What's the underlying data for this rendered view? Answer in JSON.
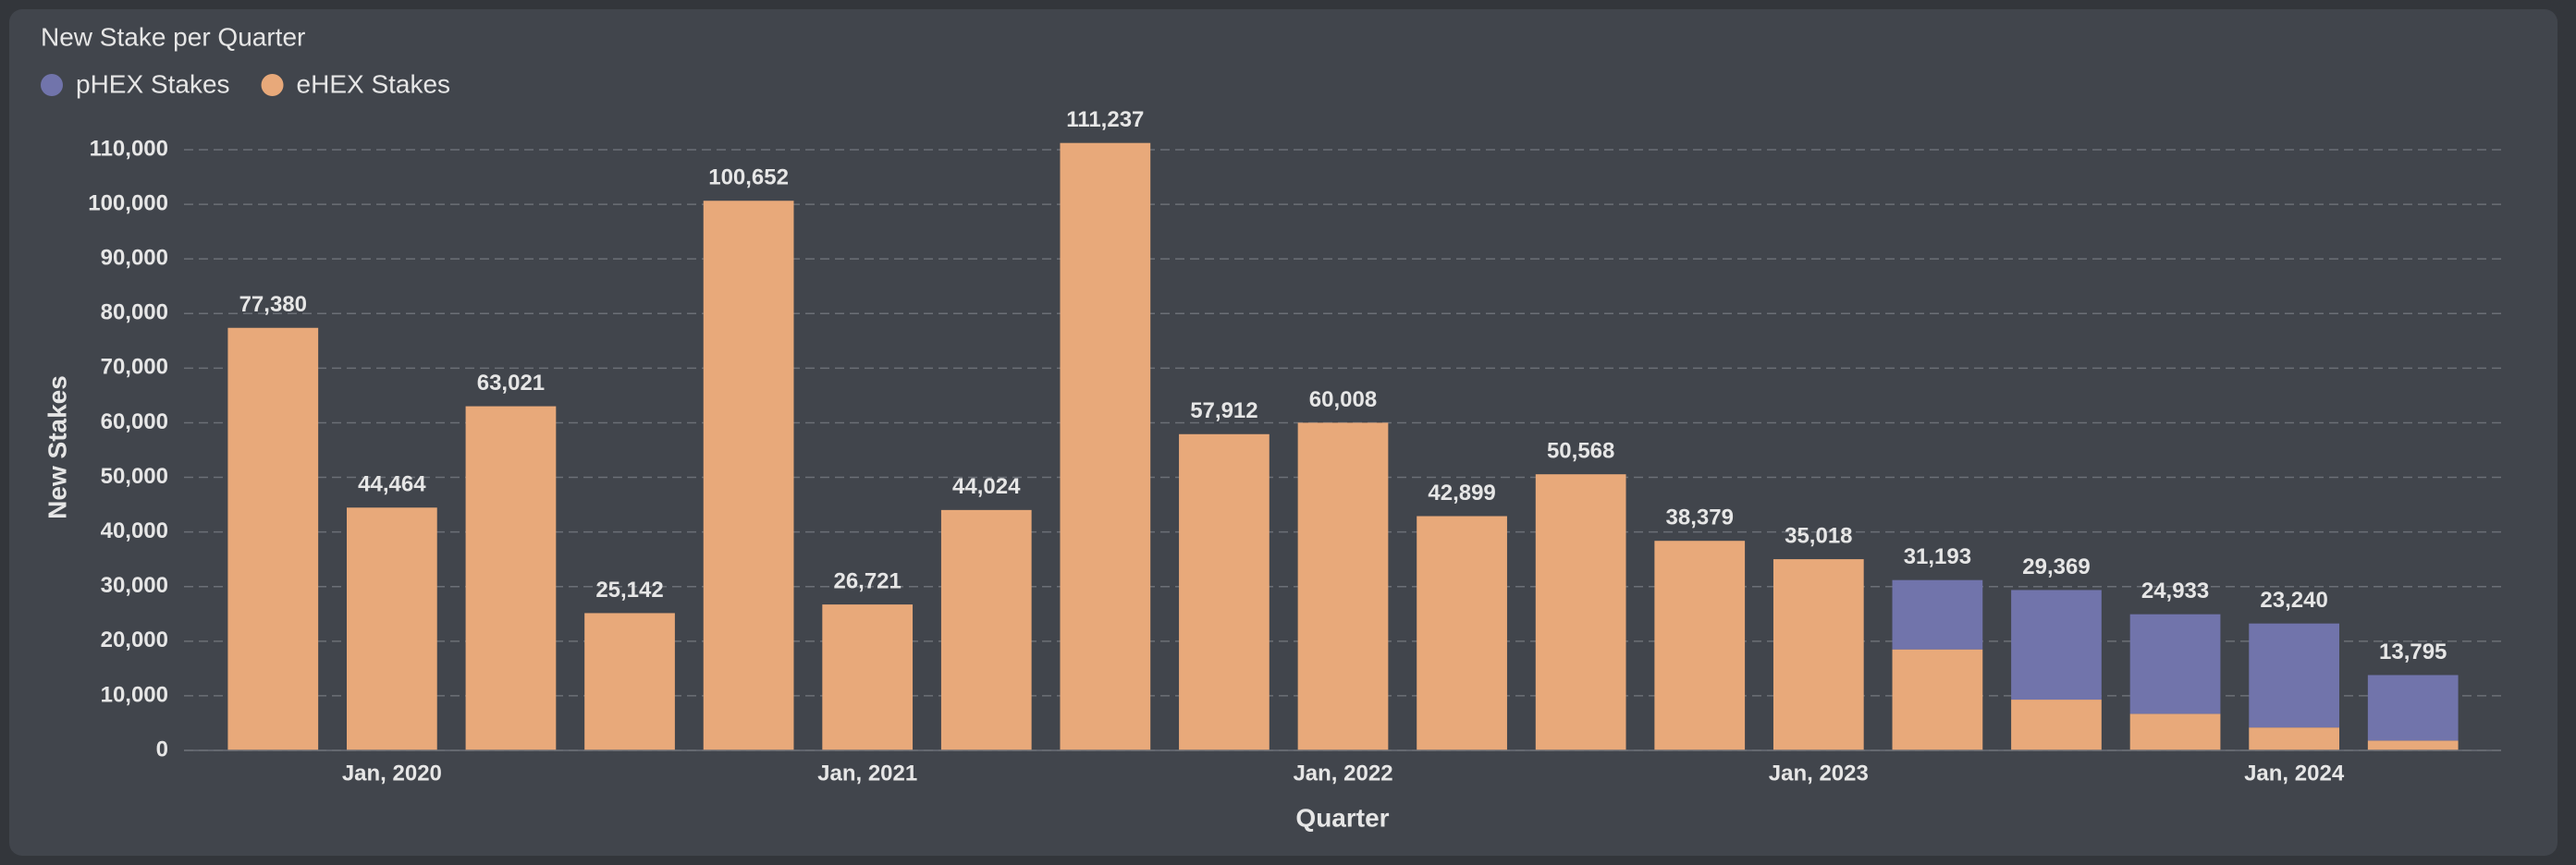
{
  "chart_data": {
    "type": "stacked_bar",
    "title": "New Stake per Quarter",
    "x_label": "Quarter",
    "y_label": "New Stakes",
    "categories": [
      null,
      "Jan, 2020",
      null,
      null,
      null,
      "Jan, 2021",
      null,
      null,
      null,
      "Jan, 2022",
      null,
      null,
      null,
      "Jan, 2023",
      null,
      null,
      null,
      "Jan, 2024",
      null
    ],
    "series": [
      {
        "name": "pHEX Stakes",
        "color": "#7174ab",
        "values": [
          null,
          null,
          null,
          null,
          null,
          null,
          null,
          null,
          null,
          null,
          null,
          null,
          null,
          null,
          12693,
          20069,
          18233,
          19040,
          11995
        ]
      },
      {
        "name": "eHEX Stakes",
        "color": "#e8a97a",
        "values": [
          77380,
          44464,
          63021,
          25142,
          100652,
          26721,
          44024,
          111237,
          57912,
          60008,
          42899,
          50568,
          38379,
          35018,
          18500,
          9300,
          6700,
          4200,
          1800
        ]
      }
    ],
    "totals": [
      77380,
      44464,
      63021,
      25142,
      100652,
      26721,
      44024,
      111237,
      57912,
      60008,
      42899,
      50568,
      38379,
      35018,
      31193,
      29369,
      24933,
      23240,
      13795
    ],
    "total_labels": [
      "77,380",
      "44,464",
      "63,021",
      "25,142",
      "100,652",
      "26,721",
      "44,024",
      "111,237",
      "57,912",
      "60,008",
      "42,899",
      "50,568",
      "38,379",
      "35,018",
      "31,193",
      "29,369",
      "24,933",
      "23,240",
      "13,795"
    ],
    "ylim": [
      0,
      110000
    ],
    "yticks": [
      0,
      {
        "value": 10000,
        "label": "10,000"
      },
      {
        "value": 20000,
        "label": "20,000"
      },
      {
        "value": 30000,
        "label": "30,000"
      },
      {
        "value": 40000,
        "label": "40,000"
      },
      {
        "value": 50000,
        "label": "50,000"
      },
      {
        "value": 60000,
        "label": "60,000"
      },
      {
        "value": 70000,
        "label": "70,000"
      },
      {
        "value": 80000,
        "label": "80,000"
      },
      {
        "value": 90000,
        "label": "90,000"
      },
      {
        "value": 100000,
        "label": "100,000"
      },
      {
        "value": 110000,
        "label": "110,000"
      }
    ],
    "grid": true
  }
}
